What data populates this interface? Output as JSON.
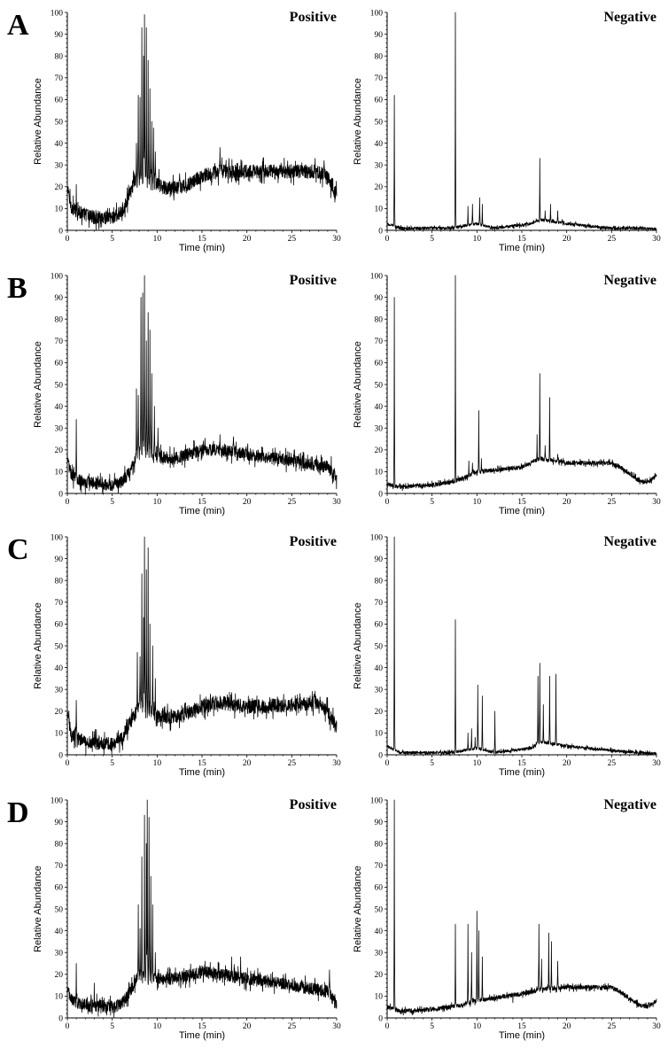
{
  "figure": {
    "panel_letters": [
      "A",
      "B",
      "C",
      "D"
    ],
    "mode_positive": "Positive",
    "mode_negative": "Negative",
    "xlabel": "Time (min)",
    "ylabel": "Relative Abundance"
  },
  "chart_data": [
    {
      "panel": "A",
      "mode": "Positive",
      "type": "line",
      "xlabel": "Time (min)",
      "ylabel": "Relative Abundance",
      "xlim": [
        0,
        30
      ],
      "ylim": [
        0,
        100
      ],
      "xticks": [
        0,
        5,
        10,
        15,
        20,
        25,
        30
      ],
      "yticks": [
        0,
        10,
        20,
        30,
        40,
        50,
        60,
        70,
        80,
        90,
        100
      ],
      "baseline": [
        [
          0,
          18
        ],
        [
          0.5,
          10
        ],
        [
          1.5,
          8
        ],
        [
          3,
          6
        ],
        [
          5,
          6
        ],
        [
          6,
          8
        ],
        [
          7,
          17
        ],
        [
          7.5,
          23
        ],
        [
          10,
          21
        ],
        [
          11,
          19
        ],
        [
          13,
          20
        ],
        [
          15,
          25
        ],
        [
          17,
          27
        ],
        [
          20,
          27
        ],
        [
          25,
          27
        ],
        [
          28,
          27
        ],
        [
          29,
          24
        ],
        [
          30,
          16
        ]
      ],
      "peaks": [
        [
          0.1,
          20
        ],
        [
          1.0,
          21
        ],
        [
          2.2,
          9
        ],
        [
          7.7,
          40
        ],
        [
          7.9,
          62
        ],
        [
          8.1,
          61
        ],
        [
          8.3,
          93
        ],
        [
          8.5,
          80
        ],
        [
          8.6,
          99
        ],
        [
          8.8,
          93
        ],
        [
          9.0,
          78
        ],
        [
          9.2,
          65
        ],
        [
          9.4,
          50
        ],
        [
          9.6,
          47
        ],
        [
          9.8,
          36
        ],
        [
          10.2,
          28
        ],
        [
          12.5,
          26
        ],
        [
          17.0,
          38
        ],
        [
          18.0,
          33
        ],
        [
          27.6,
          33
        ],
        [
          28.6,
          32
        ]
      ],
      "noise": 4
    },
    {
      "panel": "A",
      "mode": "Negative",
      "type": "line",
      "xlabel": "Time (min)",
      "ylabel": "Relative Abundance",
      "xlim": [
        0,
        30
      ],
      "ylim": [
        0,
        100
      ],
      "xticks": [
        0,
        5,
        10,
        15,
        20,
        25,
        30
      ],
      "yticks": [
        0,
        10,
        20,
        30,
        40,
        50,
        60,
        70,
        80,
        90,
        100
      ],
      "baseline": [
        [
          0,
          3
        ],
        [
          1.5,
          1
        ],
        [
          7,
          1
        ],
        [
          8.5,
          2
        ],
        [
          10,
          3
        ],
        [
          12,
          1
        ],
        [
          16,
          3
        ],
        [
          17,
          5
        ],
        [
          20,
          3
        ],
        [
          25,
          1
        ],
        [
          28,
          1
        ],
        [
          30,
          0.5
        ]
      ],
      "peaks": [
        [
          0.8,
          62
        ],
        [
          7.6,
          100
        ],
        [
          9.0,
          11
        ],
        [
          9.5,
          12
        ],
        [
          10.3,
          15
        ],
        [
          10.6,
          12
        ],
        [
          17.0,
          33
        ],
        [
          17.6,
          9
        ],
        [
          18.2,
          12
        ],
        [
          19.0,
          9
        ],
        [
          19.5,
          5
        ],
        [
          21.0,
          4
        ],
        [
          27.0,
          2
        ]
      ],
      "noise": 0.8
    },
    {
      "panel": "B",
      "mode": "Positive",
      "type": "line",
      "xlabel": "Time (min)",
      "ylabel": "Relative Abundance",
      "xlim": [
        0,
        30
      ],
      "ylim": [
        0,
        100
      ],
      "xticks": [
        0,
        5,
        10,
        15,
        20,
        25,
        30
      ],
      "yticks": [
        0,
        10,
        20,
        30,
        40,
        50,
        60,
        70,
        80,
        90,
        100
      ],
      "baseline": [
        [
          0,
          15
        ],
        [
          0.5,
          8
        ],
        [
          2,
          5
        ],
        [
          5,
          4
        ],
        [
          6,
          5
        ],
        [
          7,
          10
        ],
        [
          8,
          20
        ],
        [
          10,
          17
        ],
        [
          12,
          16
        ],
        [
          15,
          20
        ],
        [
          17,
          20
        ],
        [
          20,
          18
        ],
        [
          25,
          15
        ],
        [
          29,
          12
        ],
        [
          30,
          6
        ]
      ],
      "peaks": [
        [
          0.1,
          16
        ],
        [
          1.0,
          34
        ],
        [
          2.3,
          8
        ],
        [
          7.7,
          48
        ],
        [
          7.9,
          45
        ],
        [
          8.2,
          90
        ],
        [
          8.4,
          92
        ],
        [
          8.6,
          100
        ],
        [
          8.8,
          70
        ],
        [
          9.0,
          83
        ],
        [
          9.2,
          75
        ],
        [
          9.4,
          55
        ],
        [
          9.7,
          40
        ],
        [
          10.1,
          30
        ],
        [
          17.0,
          27
        ],
        [
          18.5,
          26
        ],
        [
          29.4,
          17
        ]
      ],
      "noise": 3.5
    },
    {
      "panel": "B",
      "mode": "Negative",
      "type": "line",
      "xlabel": "Time (min)",
      "ylabel": "Relative Abundance",
      "xlim": [
        0,
        30
      ],
      "ylim": [
        0,
        100
      ],
      "xticks": [
        0,
        5,
        10,
        15,
        20,
        25,
        30
      ],
      "yticks": [
        0,
        10,
        20,
        30,
        40,
        50,
        60,
        70,
        80,
        90,
        100
      ],
      "baseline": [
        [
          0,
          4
        ],
        [
          1.5,
          3
        ],
        [
          5,
          4
        ],
        [
          7,
          5
        ],
        [
          8.5,
          7
        ],
        [
          10,
          10
        ],
        [
          15,
          12
        ],
        [
          17,
          16
        ],
        [
          20,
          14
        ],
        [
          25,
          14
        ],
        [
          26,
          12
        ],
        [
          28,
          6
        ],
        [
          29,
          5
        ],
        [
          30,
          8
        ]
      ],
      "peaks": [
        [
          0.8,
          90
        ],
        [
          7.6,
          100
        ],
        [
          9.1,
          15
        ],
        [
          9.5,
          14
        ],
        [
          10.2,
          38
        ],
        [
          10.5,
          16
        ],
        [
          16.7,
          27
        ],
        [
          17.0,
          55
        ],
        [
          17.6,
          22
        ],
        [
          18.1,
          44
        ],
        [
          19.0,
          18
        ]
      ],
      "noise": 1.2
    },
    {
      "panel": "C",
      "mode": "Positive",
      "type": "line",
      "xlabel": "Time (min)",
      "ylabel": "Relative Abundance",
      "xlim": [
        0,
        30
      ],
      "ylim": [
        0,
        100
      ],
      "xticks": [
        0,
        5,
        10,
        15,
        20,
        25,
        30
      ],
      "yticks": [
        0,
        10,
        20,
        30,
        40,
        50,
        60,
        70,
        80,
        90,
        100
      ],
      "baseline": [
        [
          0,
          18
        ],
        [
          0.5,
          9
        ],
        [
          2,
          6
        ],
        [
          5,
          5
        ],
        [
          6,
          7
        ],
        [
          7,
          15
        ],
        [
          8,
          22
        ],
        [
          10,
          18
        ],
        [
          12,
          17
        ],
        [
          15,
          22
        ],
        [
          17,
          24
        ],
        [
          20,
          22
        ],
        [
          25,
          23
        ],
        [
          28,
          24
        ],
        [
          29,
          20
        ],
        [
          30,
          12
        ]
      ],
      "peaks": [
        [
          0.1,
          17
        ],
        [
          1.0,
          25
        ],
        [
          7.8,
          47
        ],
        [
          8.1,
          45
        ],
        [
          8.3,
          83
        ],
        [
          8.5,
          63
        ],
        [
          8.6,
          100
        ],
        [
          8.8,
          85
        ],
        [
          9.0,
          95
        ],
        [
          9.2,
          60
        ],
        [
          9.5,
          50
        ],
        [
          9.8,
          35
        ],
        [
          16.5,
          27
        ],
        [
          27.5,
          28
        ]
      ],
      "noise": 4
    },
    {
      "panel": "C",
      "mode": "Negative",
      "type": "line",
      "xlabel": "Time (min)",
      "ylabel": "Relative Abundance",
      "xlim": [
        0,
        30
      ],
      "ylim": [
        0,
        100
      ],
      "xticks": [
        0,
        5,
        10,
        15,
        20,
        25,
        30
      ],
      "yticks": [
        0,
        10,
        20,
        30,
        40,
        50,
        60,
        70,
        80,
        90,
        100
      ],
      "baseline": [
        [
          0,
          4
        ],
        [
          1.5,
          1
        ],
        [
          7,
          1
        ],
        [
          8.5,
          2
        ],
        [
          10,
          3
        ],
        [
          12,
          1
        ],
        [
          16,
          3
        ],
        [
          17,
          6
        ],
        [
          20,
          4
        ],
        [
          25,
          2
        ],
        [
          28,
          1
        ],
        [
          30,
          0.5
        ]
      ],
      "peaks": [
        [
          0.8,
          100
        ],
        [
          7.6,
          62
        ],
        [
          9.0,
          10
        ],
        [
          9.4,
          12
        ],
        [
          9.8,
          8
        ],
        [
          10.1,
          32
        ],
        [
          10.6,
          27
        ],
        [
          12.0,
          20
        ],
        [
          16.8,
          36
        ],
        [
          17.0,
          42
        ],
        [
          17.4,
          23
        ],
        [
          18.1,
          36
        ],
        [
          18.8,
          37
        ],
        [
          20.0,
          5
        ]
      ],
      "noise": 0.8
    },
    {
      "panel": "D",
      "mode": "Positive",
      "type": "line",
      "xlabel": "Time (min)",
      "ylabel": "Relative Abundance",
      "xlim": [
        0,
        30
      ],
      "ylim": [
        0,
        100
      ],
      "xticks": [
        0,
        5,
        10,
        15,
        20,
        25,
        30
      ],
      "yticks": [
        0,
        10,
        20,
        30,
        40,
        50,
        60,
        70,
        80,
        90,
        100
      ],
      "baseline": [
        [
          0,
          13
        ],
        [
          0.5,
          8
        ],
        [
          2,
          6
        ],
        [
          5,
          5
        ],
        [
          6,
          6
        ],
        [
          7,
          12
        ],
        [
          8,
          20
        ],
        [
          10,
          18
        ],
        [
          12,
          18
        ],
        [
          15,
          21
        ],
        [
          17,
          20
        ],
        [
          20,
          18
        ],
        [
          25,
          15
        ],
        [
          29,
          12
        ],
        [
          30,
          6
        ]
      ],
      "peaks": [
        [
          0.1,
          12
        ],
        [
          1.0,
          25
        ],
        [
          3.0,
          16
        ],
        [
          7.9,
          52
        ],
        [
          8.1,
          41
        ],
        [
          8.3,
          74
        ],
        [
          8.6,
          93
        ],
        [
          8.8,
          80
        ],
        [
          8.9,
          100
        ],
        [
          9.1,
          92
        ],
        [
          9.3,
          65
        ],
        [
          9.5,
          52
        ],
        [
          9.8,
          30
        ],
        [
          15.0,
          24
        ],
        [
          18.3,
          28
        ],
        [
          19.3,
          28
        ],
        [
          29.2,
          22
        ]
      ],
      "noise": 3.5
    },
    {
      "panel": "D",
      "mode": "Negative",
      "type": "line",
      "xlabel": "Time (min)",
      "ylabel": "Relative Abundance",
      "xlim": [
        0,
        30
      ],
      "ylim": [
        0,
        100
      ],
      "xticks": [
        0,
        5,
        10,
        15,
        20,
        25,
        30
      ],
      "yticks": [
        0,
        10,
        20,
        30,
        40,
        50,
        60,
        70,
        80,
        90,
        100
      ],
      "baseline": [
        [
          0,
          5
        ],
        [
          1.5,
          3
        ],
        [
          5,
          4
        ],
        [
          7,
          5
        ],
        [
          8.5,
          6
        ],
        [
          10,
          8
        ],
        [
          15,
          11
        ],
        [
          17,
          13
        ],
        [
          20,
          14
        ],
        [
          25,
          14
        ],
        [
          26,
          12
        ],
        [
          28,
          6
        ],
        [
          29,
          5
        ],
        [
          30,
          8
        ]
      ],
      "peaks": [
        [
          0.8,
          100
        ],
        [
          7.6,
          43
        ],
        [
          9.0,
          43
        ],
        [
          9.4,
          30
        ],
        [
          10.0,
          49
        ],
        [
          10.2,
          40
        ],
        [
          10.6,
          28
        ],
        [
          14.0,
          7
        ],
        [
          16.9,
          43
        ],
        [
          17.2,
          27
        ],
        [
          18.0,
          39
        ],
        [
          18.3,
          35
        ],
        [
          19.0,
          26
        ]
      ],
      "noise": 1.2
    }
  ]
}
